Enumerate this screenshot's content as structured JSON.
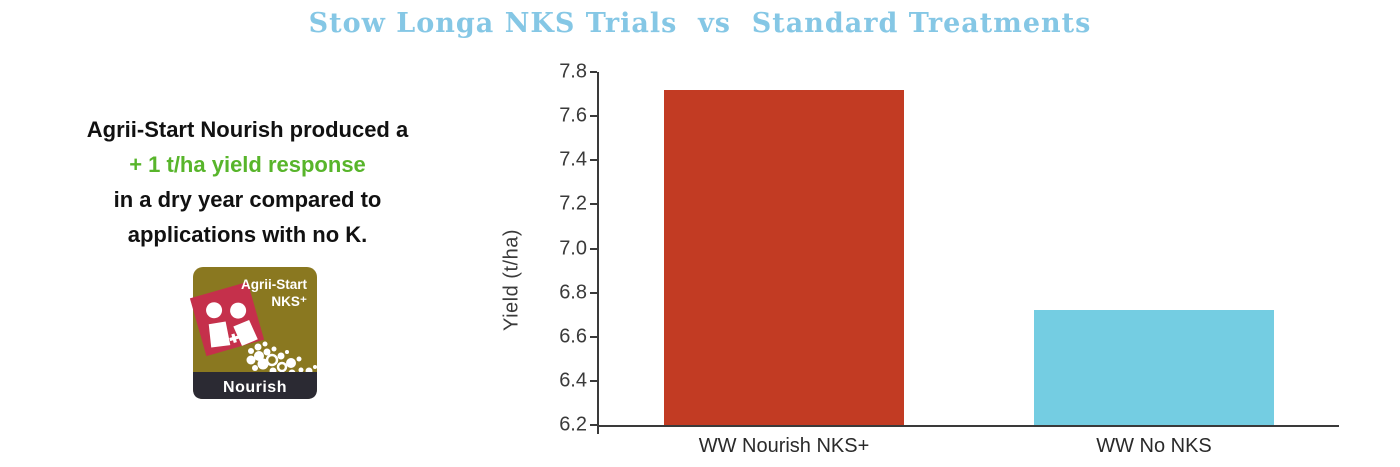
{
  "title": "Stow Longa NKS Trials  vs  Standard Treatments",
  "annotation": {
    "line1": "Agrii-Start Nourish produced a",
    "line2": "+ 1 t/ha yield response",
    "line3": "in a dry year compared to",
    "line4": "applications with no K."
  },
  "logo": {
    "brand": "Agrii-Start",
    "variant": "NKS⁺",
    "product": "Nourish"
  },
  "colors": {
    "title_blue": "#85C7E5",
    "highlight_green": "#58B52B",
    "text_black": "#111111",
    "axis_gray": "#3A3A3A",
    "badge_gold": "#8A7820",
    "badge_red": "#C5304B",
    "badge_footer": "#2B2A33"
  },
  "chart_data": {
    "type": "bar",
    "title": "Stow Longa NKS Trials vs Standard Treatments",
    "categories": [
      "WW Nourish NKS+",
      "WW No NKS"
    ],
    "values": [
      7.72,
      6.72
    ],
    "bar_colors": [
      "#C23B23",
      "#74CDE2"
    ],
    "xlabel": "",
    "ylabel": "Yield (t/ha)",
    "ylim": [
      6.2,
      7.8
    ],
    "ytick_step": 0.2,
    "yticks": [
      "7.8",
      "7.6",
      "7.4",
      "7.2",
      "7.0",
      "6.8",
      "6.6",
      "6.4",
      "6.2"
    ],
    "grid": false,
    "legend": false
  }
}
